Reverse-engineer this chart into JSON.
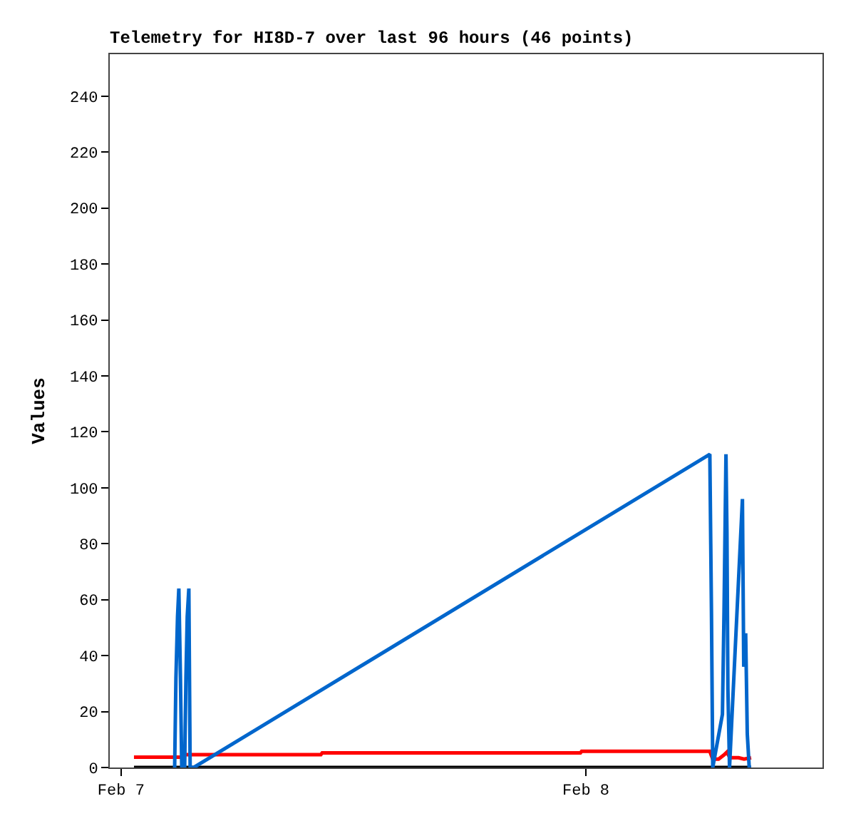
{
  "chart_data": {
    "type": "line",
    "title": "Telemetry for HI8D-7 over last 96 hours (46 points)",
    "ylabel": "Values",
    "xlim": [
      "--02-06T23:25",
      "--02-08T12:13"
    ],
    "xticks": [
      {
        "value": "--02-07",
        "label": "Feb 7"
      },
      {
        "value": "--02-08",
        "label": "Feb 8"
      }
    ],
    "ylim": [
      0,
      255
    ],
    "yticks": [
      0,
      20,
      40,
      60,
      80,
      100,
      120,
      140,
      160,
      180,
      200,
      220,
      240
    ],
    "marker": "none",
    "line_style": "solid",
    "series": [
      {
        "color": "#000000",
        "x": [
          "--02-07T00:40",
          "--02-08T08:32"
        ],
        "values": [
          0,
          0
        ]
      },
      {
        "color": "#ff0000",
        "x": [
          "--02-07T00:40",
          "--02-07T03:10",
          "--02-07T03:14",
          "--02-07T10:19",
          "--02-07T10:23",
          "--02-07T23:43",
          "--02-07T23:47",
          "--02-08T06:24",
          "--02-08T06:33",
          "--02-08T06:51",
          "--02-08T07:08",
          "--02-08T07:17",
          "--02-08T07:26",
          "--02-08T07:53",
          "--02-08T08:10",
          "--02-08T08:32"
        ],
        "values": [
          3.7,
          3.7,
          4.6,
          4.6,
          5.2,
          5.2,
          5.8,
          5.8,
          3,
          3,
          4.5,
          5.5,
          3.5,
          3.5,
          3,
          3.5
        ]
      },
      {
        "color": "#0066cc",
        "x": [
          "--02-07T02:46",
          "--02-07T02:50",
          "--02-07T02:55",
          "--02-07T02:59",
          "--02-07T03:04",
          "--02-07T03:08",
          "--02-07T03:17",
          "--02-07T03:21",
          "--02-07T03:25",
          "--02-07T03:30",
          "--02-07T03:34",
          "--02-07T03:45",
          "--02-08T06:24",
          "--02-08T06:29",
          "--02-08T06:33",
          "--02-08T07:03",
          "--02-08T07:08",
          "--02-08T07:14",
          "--02-08T07:17",
          "--02-08T07:20",
          "--02-08T07:25",
          "--02-08T08:05",
          "--02-08T08:09",
          "--02-08T08:15",
          "--02-08T08:20",
          "--02-08T08:26",
          "--02-08T08:32"
        ],
        "values": [
          0,
          32,
          54,
          64,
          32,
          0,
          0,
          32,
          54,
          64,
          0,
          0,
          112,
          56,
          0,
          19,
          56,
          112,
          84,
          28,
          0,
          96,
          36,
          48,
          12,
          0,
          0
        ]
      }
    ]
  }
}
